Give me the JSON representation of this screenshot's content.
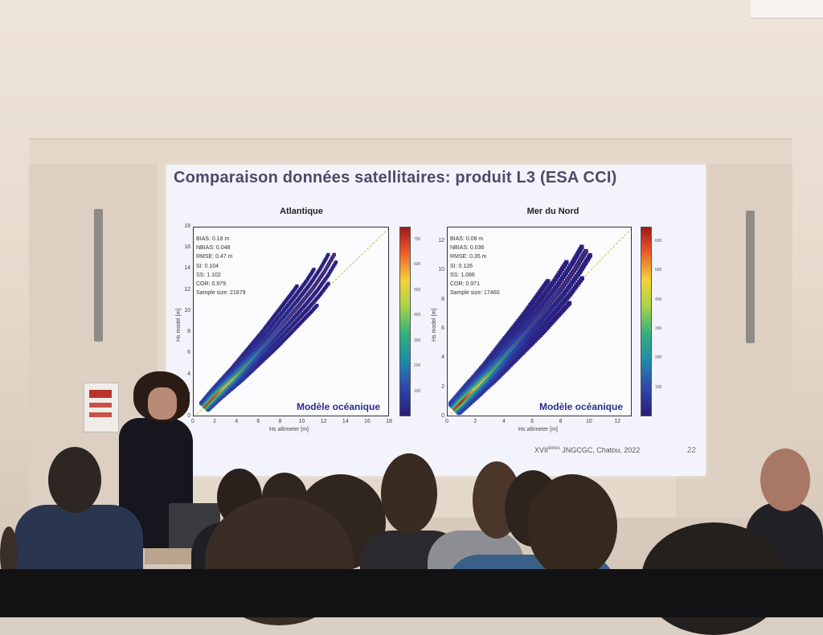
{
  "slide": {
    "title": "Comparaison données satellitaires: produit L3 (ESA CCI)",
    "footer_prefix": "XVII",
    "footer_sup": "èmes",
    "footer_suffix": " JNGCGC, Chatou, 2022",
    "page_number": "22"
  },
  "chart_data": [
    {
      "type": "heatmap",
      "title": "Atlantique",
      "xlabel": "Hs altimeter [m]",
      "ylabel": "Hs model [m]",
      "xlim": [
        0,
        18
      ],
      "ylim": [
        0,
        18
      ],
      "xticks": [
        "0",
        "2",
        "4",
        "6",
        "8",
        "10",
        "12",
        "14",
        "16",
        "18"
      ],
      "yticks": [
        "0",
        "2",
        "4",
        "6",
        "8",
        "10",
        "12",
        "14",
        "16",
        "18"
      ],
      "stats": [
        "BIAS: 0.18 m",
        "NBIAS: 0.048",
        "RMSE: 0.47 m",
        "SI: 0.104",
        "SS: 1.102",
        "COR: 0.979",
        "Sample size: 21879"
      ],
      "annotation": "Modèle océanique",
      "colorbar_ticks": [
        "700",
        "600",
        "500",
        "400",
        "300",
        "200",
        "100"
      ],
      "colorbar_max": 750,
      "series": [
        {
          "x": 1.0,
          "y": 1.0,
          "count": 720
        },
        {
          "x": 2.0,
          "y": 2.1,
          "count": 680
        },
        {
          "x": 3.0,
          "y": 3.1,
          "count": 520
        },
        {
          "x": 4.0,
          "y": 4.1,
          "count": 380
        },
        {
          "x": 5.0,
          "y": 5.2,
          "count": 260
        },
        {
          "x": 6.0,
          "y": 6.3,
          "count": 180
        },
        {
          "x": 7.0,
          "y": 7.4,
          "count": 120
        },
        {
          "x": 8.0,
          "y": 8.6,
          "count": 80
        },
        {
          "x": 9.0,
          "y": 9.8,
          "count": 50
        },
        {
          "x": 10.0,
          "y": 11.0,
          "count": 30
        },
        {
          "x": 11.0,
          "y": 12.3,
          "count": 18
        },
        {
          "x": 12.0,
          "y": 13.8,
          "count": 10
        },
        {
          "x": 13.0,
          "y": 15.6,
          "count": 5
        }
      ]
    },
    {
      "type": "heatmap",
      "title": "Mer du Nord",
      "xlabel": "Hs altimeter [m]",
      "ylabel": "Hs model [m]",
      "xlim": [
        0,
        13
      ],
      "ylim": [
        0,
        13
      ],
      "xticks": [
        "0",
        "2",
        "4",
        "6",
        "8",
        "10",
        "12"
      ],
      "yticks": [
        "0",
        "2",
        "4",
        "6",
        "8",
        "10",
        "12"
      ],
      "stats": [
        "BIAS: 0.08 m",
        "NBIAS: 0.036",
        "RMSE: 0.35 m",
        "SI: 0.126",
        "SS: 1.086",
        "COR: 0.971",
        "Sample size: 17460"
      ],
      "annotation": "Modèle océanique",
      "colorbar_ticks": [
        "600",
        "500",
        "400",
        "300",
        "200",
        "100"
      ],
      "colorbar_max": 650,
      "series": [
        {
          "x": 0.5,
          "y": 0.6,
          "count": 600
        },
        {
          "x": 1.0,
          "y": 1.1,
          "count": 640
        },
        {
          "x": 1.5,
          "y": 1.6,
          "count": 560
        },
        {
          "x": 2.0,
          "y": 2.1,
          "count": 470
        },
        {
          "x": 3.0,
          "y": 3.1,
          "count": 320
        },
        {
          "x": 4.0,
          "y": 4.2,
          "count": 200
        },
        {
          "x": 5.0,
          "y": 5.3,
          "count": 120
        },
        {
          "x": 6.0,
          "y": 6.4,
          "count": 70
        },
        {
          "x": 7.0,
          "y": 7.6,
          "count": 40
        },
        {
          "x": 8.0,
          "y": 8.8,
          "count": 22
        },
        {
          "x": 9.0,
          "y": 10.2,
          "count": 12
        },
        {
          "x": 9.8,
          "y": 11.5,
          "count": 6
        }
      ]
    }
  ],
  "colors": {
    "slide_bg": "#f3f4fb",
    "title": "#4d4a6a",
    "annotation": "#2b2f8f",
    "diag_line": "#c9c24a",
    "fit_line": "#c0392b"
  }
}
